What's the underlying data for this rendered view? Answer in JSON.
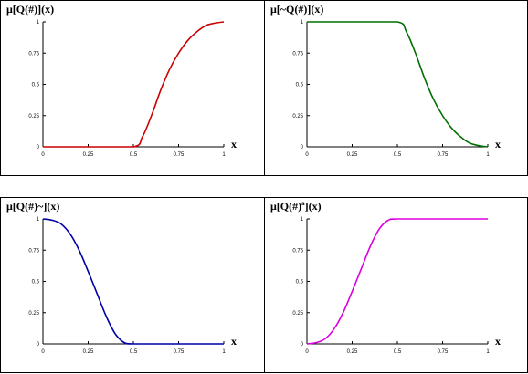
{
  "chart_data": [
    {
      "type": "line",
      "title_pre": "μ[Q(#)](x)",
      "title_sup": "",
      "title_post": "",
      "color": "#cc0000",
      "xlabel": "x",
      "xlim": [
        0,
        1
      ],
      "ylim": [
        0,
        1
      ],
      "xticks": [
        "0",
        "0.25",
        "0.5",
        "0.75",
        "1"
      ],
      "yticks": [
        "0",
        "0.25",
        "0.5",
        "0.75",
        "1"
      ],
      "x": [
        0,
        0.25,
        0.5,
        0.55,
        0.6,
        0.65,
        0.7,
        0.75,
        0.8,
        0.85,
        0.9,
        0.95,
        1
      ],
      "y": [
        0,
        0,
        0,
        0.08,
        0.25,
        0.45,
        0.62,
        0.75,
        0.85,
        0.92,
        0.97,
        0.99,
        1
      ]
    },
    {
      "type": "line",
      "title_pre": "μ[~Q(#)](x)",
      "title_sup": "",
      "title_post": "",
      "color": "#007000",
      "xlabel": "x",
      "xlim": [
        0,
        1
      ],
      "ylim": [
        0,
        1
      ],
      "xticks": [
        "0",
        "0.25",
        "0.5",
        "0.75",
        "1"
      ],
      "yticks": [
        "0",
        "0.25",
        "0.5",
        "0.75",
        "1"
      ],
      "x": [
        0,
        0.25,
        0.5,
        0.55,
        0.6,
        0.65,
        0.7,
        0.75,
        0.8,
        0.85,
        0.9,
        0.95,
        1
      ],
      "y": [
        1,
        1,
        1,
        0.92,
        0.75,
        0.55,
        0.38,
        0.25,
        0.15,
        0.08,
        0.03,
        0.01,
        0
      ]
    },
    {
      "type": "line",
      "title_pre": "μ[Q(#)~](x)",
      "title_sup": "",
      "title_post": "",
      "color": "#0000aa",
      "xlabel": "x",
      "xlim": [
        0,
        1
      ],
      "ylim": [
        0,
        1
      ],
      "xticks": [
        "0",
        "0.25",
        "0.5",
        "0.75",
        "1"
      ],
      "yticks": [
        "0",
        "0.25",
        "0.5",
        "0.75",
        "1"
      ],
      "x": [
        0,
        0.05,
        0.1,
        0.15,
        0.2,
        0.25,
        0.3,
        0.35,
        0.4,
        0.45,
        0.5,
        0.75,
        1
      ],
      "y": [
        1,
        0.99,
        0.96,
        0.88,
        0.75,
        0.58,
        0.4,
        0.22,
        0.08,
        0.01,
        0,
        0,
        0
      ]
    },
    {
      "type": "line",
      "title_pre": "μ[Q(#)",
      "title_sup": "a",
      "title_post": "](x)",
      "color": "#dd00dd",
      "xlabel": "x",
      "xlim": [
        0,
        1
      ],
      "ylim": [
        0,
        1
      ],
      "xticks": [
        "0",
        "0.25",
        "0.5",
        "0.75",
        "1"
      ],
      "yticks": [
        "0",
        "0.25",
        "0.5",
        "0.75",
        "1"
      ],
      "x": [
        0,
        0.05,
        0.1,
        0.15,
        0.2,
        0.25,
        0.3,
        0.35,
        0.4,
        0.45,
        0.5,
        0.75,
        1
      ],
      "y": [
        0,
        0.01,
        0.04,
        0.12,
        0.25,
        0.42,
        0.6,
        0.78,
        0.92,
        0.99,
        1,
        1,
        1
      ]
    }
  ]
}
